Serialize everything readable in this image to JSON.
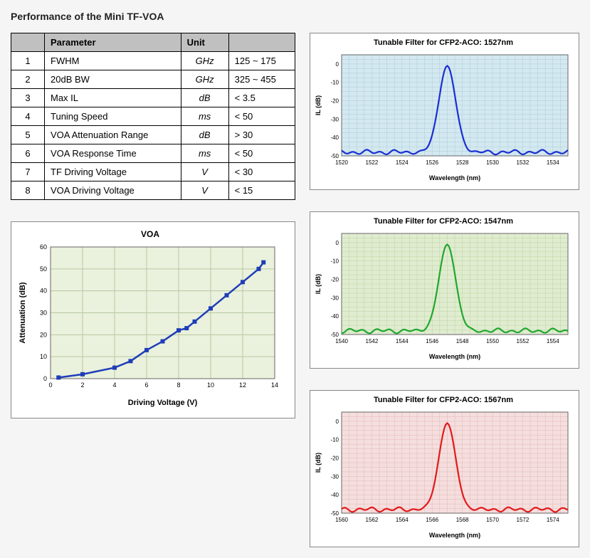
{
  "page_title": "Performance of the Mini TF-VOA",
  "table": {
    "headers": [
      "",
      "Parameter",
      "Unit",
      ""
    ],
    "rows": [
      [
        "1",
        "FWHM",
        "GHz",
        "125 ~ 175"
      ],
      [
        "2",
        "20dB BW",
        "GHz",
        "325 ~ 455"
      ],
      [
        "3",
        "Max IL",
        "dB",
        "< 3.5"
      ],
      [
        "4",
        "Tuning Speed",
        "ms",
        "< 50"
      ],
      [
        "5",
        "VOA Attenuation Range",
        "dB",
        "> 30"
      ],
      [
        "6",
        "VOA Response Time",
        "ms",
        "< 50"
      ],
      [
        "7",
        "TF Driving Voltage",
        "V",
        "< 30"
      ],
      [
        "8",
        "VOA Driving Voltage",
        "V",
        "< 15"
      ]
    ]
  },
  "voa_chart": {
    "type": "line-scatter",
    "title": "VOA",
    "xlabel": "Driving Voltage (V)",
    "ylabel": "Attenuation (dB)",
    "xlim": [
      0,
      14
    ],
    "ylim": [
      0,
      60
    ],
    "xtick_step": 2,
    "ytick_step": 10,
    "x": [
      0.5,
      2,
      4,
      5,
      6,
      7,
      8,
      8.5,
      9,
      10,
      11,
      12,
      13,
      13.3
    ],
    "y": [
      0.5,
      2,
      5,
      8,
      13,
      17,
      22,
      23,
      26,
      32,
      38,
      44,
      50,
      53
    ],
    "line_color": "#1e3db8",
    "marker_color": "#1e3db8",
    "marker_size": 6,
    "line_width": 2.5,
    "plot_bg": "#eaf1dd",
    "grid_color": "#b8c99e",
    "title_fontsize": 12,
    "label_fontsize": 11,
    "tick_fontsize": 9
  },
  "filter_charts": [
    {
      "title": "Tunable Filter for CFP2-ACO: 1527nm",
      "xlabel": "Wavelength (nm)",
      "ylabel": "IL (dB)",
      "xlim": [
        1520,
        1535
      ],
      "ylim": [
        -50,
        5
      ],
      "xticks": [
        1520,
        1522,
        1524,
        1526,
        1528,
        1530,
        1532,
        1534
      ],
      "yticks": [
        0,
        -10,
        -20,
        -30,
        -40,
        -50
      ],
      "color": "#1a2fd1",
      "plot_bg": "#d4e8f0",
      "grid_color": "#a9cddc",
      "peak_x": 1527,
      "baseline": -48,
      "peak_y": -1,
      "fwhm_nm": 1.3
    },
    {
      "title": "Tunable Filter for CFP2-ACO: 1547nm",
      "xlabel": "Wavelength (nm)",
      "ylabel": "IL (dB)",
      "xlim": [
        1540,
        1555
      ],
      "ylim": [
        -50,
        5
      ],
      "xticks": [
        1540,
        1542,
        1544,
        1546,
        1548,
        1550,
        1552,
        1554
      ],
      "yticks": [
        0,
        -10,
        -20,
        -30,
        -40,
        -50
      ],
      "color": "#1fa82e",
      "plot_bg": "#e0ecd0",
      "grid_color": "#bcd3a1",
      "peak_x": 1547,
      "baseline": -48,
      "peak_y": -1,
      "fwhm_nm": 1.3
    },
    {
      "title": "Tunable Filter for CFP2-ACO: 1567nm",
      "xlabel": "Wavelength (nm)",
      "ylabel": "IL (dB)",
      "xlim": [
        1560,
        1575
      ],
      "ylim": [
        -50,
        5
      ],
      "xticks": [
        1560,
        1562,
        1564,
        1566,
        1568,
        1570,
        1572,
        1574
      ],
      "yticks": [
        0,
        -10,
        -20,
        -30,
        -40,
        -50
      ],
      "color": "#e21a1a",
      "plot_bg": "#f5dede",
      "grid_color": "#e3b7b7",
      "peak_x": 1567,
      "baseline": -48,
      "peak_y": -1,
      "fwhm_nm": 1.3
    }
  ]
}
